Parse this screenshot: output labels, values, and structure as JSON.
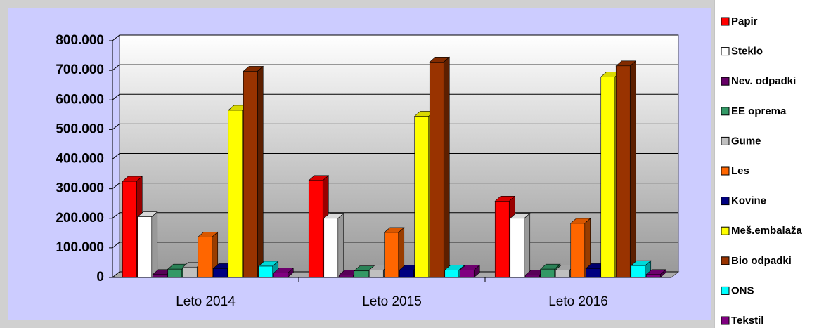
{
  "chart_data": {
    "type": "bar3d",
    "categories": [
      "Leto 2014",
      "Leto 2015",
      "Leto 2016"
    ],
    "series": [
      {
        "name": "Papir",
        "color": "#ff0000",
        "values": [
          325000,
          328000,
          258000
        ]
      },
      {
        "name": "Steklo",
        "color": "#ffffff",
        "values": [
          205000,
          200000,
          200000
        ]
      },
      {
        "name": "Nev. odpadki",
        "color": "#660066",
        "values": [
          10000,
          8000,
          8000
        ]
      },
      {
        "name": "EE oprema",
        "color": "#339966",
        "values": [
          28000,
          22000,
          28000
        ]
      },
      {
        "name": "Gume",
        "color": "#c0c0c0",
        "values": [
          35000,
          25000,
          25000
        ]
      },
      {
        "name": "Les",
        "color": "#ff6600",
        "values": [
          137000,
          152000,
          183000
        ]
      },
      {
        "name": "Kovine",
        "color": "#000080",
        "values": [
          30000,
          25000,
          30000
        ]
      },
      {
        "name": "Meš.embalaža",
        "color": "#ffff00",
        "values": [
          565000,
          545000,
          678000
        ]
      },
      {
        "name": "Bio odpadki",
        "color": "#993300",
        "values": [
          697000,
          728000,
          715000
        ]
      },
      {
        "name": "ONS",
        "color": "#00ffff",
        "values": [
          38000,
          25000,
          40000
        ]
      },
      {
        "name": "Tekstil",
        "color": "#800080",
        "values": [
          15000,
          25000,
          10000
        ]
      }
    ],
    "ylim": [
      0,
      800000
    ],
    "yticks": [
      0,
      {
        "value": 100000,
        "label": "100.000"
      },
      {
        "value": 200000,
        "label": "200.000"
      },
      {
        "value": 300000,
        "label": "300.000"
      },
      {
        "value": 400000,
        "label": "400.000"
      },
      {
        "value": 500000,
        "label": "500.000"
      },
      {
        "value": 600000,
        "label": "600.000"
      },
      {
        "value": 700000,
        "label": "700.000"
      },
      {
        "value": 800000,
        "label": "800.000"
      }
    ],
    "grid": true,
    "legend": "right"
  }
}
